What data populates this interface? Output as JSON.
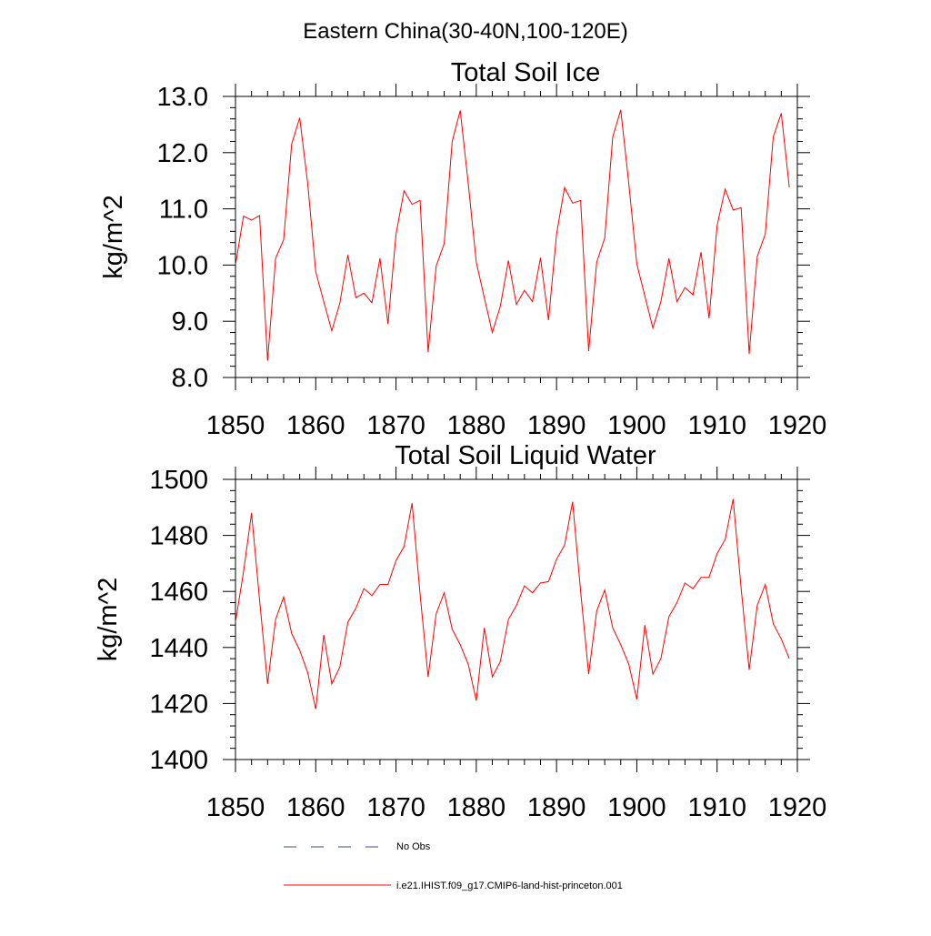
{
  "figure": {
    "title": "Eastern China(30-40N,100-120E)"
  },
  "legend": {
    "entries": [
      {
        "label": "No Obs",
        "color": "#3a4a8a",
        "dash": "dashed"
      },
      {
        "label": "i.e21.IHIST.f09_g17.CMIP6-land-hist-princeton.001",
        "color": "#ff0000",
        "dash": "solid"
      }
    ]
  },
  "chart_data": [
    {
      "type": "line",
      "title": "Total Soil Ice",
      "ylabel": "kg/m^2",
      "xlabel": "",
      "xlim": [
        1850,
        1920
      ],
      "ylim": [
        8.0,
        13.0
      ],
      "xticks": [
        1850,
        1860,
        1870,
        1880,
        1890,
        1900,
        1910,
        1920
      ],
      "yticks": [
        8.0,
        9.0,
        10.0,
        11.0,
        12.0,
        13.0
      ],
      "yticklabels": [
        "8.0",
        "9.0",
        "10.0",
        "11.0",
        "12.0",
        "13.0"
      ],
      "grid": false,
      "series": [
        {
          "name": "i.e21.IHIST.f09_g17.CMIP6-land-hist-princeton.001",
          "color": "#ff0000",
          "x": [
            1850,
            1851,
            1852,
            1853,
            1854,
            1855,
            1856,
            1857,
            1858,
            1859,
            1860,
            1861,
            1862,
            1863,
            1864,
            1865,
            1866,
            1867,
            1868,
            1869,
            1870,
            1871,
            1872,
            1873,
            1874,
            1875,
            1876,
            1877,
            1878,
            1879,
            1880,
            1881,
            1882,
            1883,
            1884,
            1885,
            1886,
            1887,
            1888,
            1889,
            1890,
            1891,
            1892,
            1893,
            1894,
            1895,
            1896,
            1897,
            1898,
            1899,
            1900,
            1901,
            1902,
            1903,
            1904,
            1905,
            1906,
            1907,
            1908,
            1909,
            1910,
            1911,
            1912,
            1913,
            1914,
            1915,
            1916,
            1917,
            1918,
            1919
          ],
          "y": [
            10.0,
            10.87,
            10.8,
            10.88,
            8.3,
            10.12,
            10.45,
            12.15,
            12.62,
            11.45,
            9.88,
            9.35,
            8.83,
            9.32,
            10.18,
            9.42,
            9.5,
            9.33,
            10.12,
            8.95,
            10.55,
            11.32,
            11.08,
            11.15,
            8.45,
            9.98,
            10.38,
            12.2,
            12.75,
            11.45,
            10.05,
            9.42,
            8.8,
            9.27,
            10.08,
            9.3,
            9.55,
            9.35,
            10.13,
            9.02,
            10.55,
            11.38,
            11.1,
            11.15,
            8.47,
            10.05,
            10.48,
            12.28,
            12.76,
            11.45,
            10.02,
            9.45,
            8.88,
            9.35,
            10.12,
            9.35,
            9.6,
            9.47,
            10.23,
            9.05,
            10.7,
            11.35,
            10.98,
            11.02,
            8.42,
            10.15,
            10.55,
            12.28,
            12.7,
            11.38
          ]
        }
      ]
    },
    {
      "type": "line",
      "title": "Total Soil Liquid Water",
      "ylabel": "kg/m^2",
      "xlabel": "",
      "xlim": [
        1850,
        1920
      ],
      "ylim": [
        1400,
        1500
      ],
      "xticks": [
        1850,
        1860,
        1870,
        1880,
        1890,
        1900,
        1910,
        1920
      ],
      "yticks": [
        1400,
        1420,
        1440,
        1460,
        1480,
        1500
      ],
      "yticklabels": [
        "1400",
        "1420",
        "1440",
        "1460",
        "1480",
        "1500"
      ],
      "grid": false,
      "series": [
        {
          "name": "i.e21.IHIST.f09_g17.CMIP6-land-hist-princeton.001",
          "color": "#ff0000",
          "x": [
            1850,
            1851,
            1852,
            1853,
            1854,
            1855,
            1856,
            1857,
            1858,
            1859,
            1860,
            1861,
            1862,
            1863,
            1864,
            1865,
            1866,
            1867,
            1868,
            1869,
            1870,
            1871,
            1872,
            1873,
            1874,
            1875,
            1876,
            1877,
            1878,
            1879,
            1880,
            1881,
            1882,
            1883,
            1884,
            1885,
            1886,
            1887,
            1888,
            1889,
            1890,
            1891,
            1892,
            1893,
            1894,
            1895,
            1896,
            1897,
            1898,
            1899,
            1900,
            1901,
            1902,
            1903,
            1904,
            1905,
            1906,
            1907,
            1908,
            1909,
            1910,
            1911,
            1912,
            1913,
            1914,
            1915,
            1916,
            1917,
            1918,
            1919
          ],
          "y": [
            1449,
            1467,
            1488,
            1457,
            1427,
            1450,
            1458,
            1445,
            1439,
            1431,
            1418,
            1444.5,
            1427,
            1433,
            1449,
            1454,
            1461,
            1458.5,
            1462.5,
            1462.5,
            1471,
            1476,
            1491.5,
            1459,
            1429.5,
            1452,
            1459.5,
            1446.5,
            1441,
            1434,
            1421,
            1447,
            1429.5,
            1435,
            1450,
            1455,
            1462,
            1459.5,
            1463,
            1463.5,
            1471.5,
            1476.5,
            1492,
            1460,
            1430.5,
            1453,
            1460.5,
            1447,
            1441,
            1434,
            1421.5,
            1448,
            1430.5,
            1436,
            1451,
            1456,
            1463,
            1461,
            1465,
            1465,
            1473.5,
            1478.5,
            1493,
            1461,
            1432,
            1455,
            1462.5,
            1448.5,
            1443,
            1436
          ]
        }
      ]
    }
  ]
}
